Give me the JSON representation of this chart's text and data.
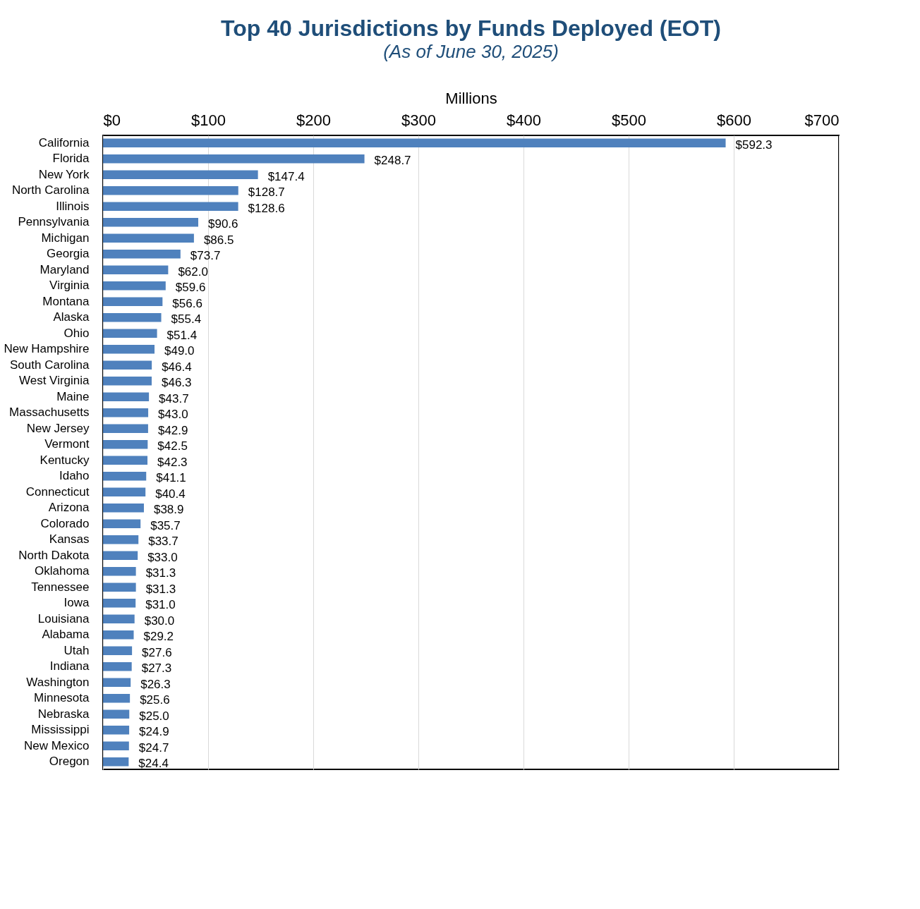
{
  "chart_data": {
    "type": "bar",
    "orientation": "horizontal",
    "title": "Top 40 Jurisdictions by Funds Deployed (EOT)",
    "subtitle": "(As of June 30, 2025)",
    "xlabel": "Millions",
    "categories": [
      "California",
      "Florida",
      "New York",
      "North Carolina",
      "Illinois",
      "Pennsylvania",
      "Michigan",
      "Georgia",
      "Maryland",
      "Virginia",
      "Montana",
      "Alaska",
      "Ohio",
      "New Hampshire",
      "South Carolina",
      "West Virginia",
      "Maine",
      "Massachusetts",
      "New Jersey",
      "Vermont",
      "Kentucky",
      "Idaho",
      "Connecticut",
      "Arizona",
      "Colorado",
      "Kansas",
      "North Dakota",
      "Oklahoma",
      "Tennessee",
      "Iowa",
      "Louisiana",
      "Alabama",
      "Utah",
      "Indiana",
      "Washington",
      "Minnesota",
      "Nebraska",
      "Mississippi",
      "New Mexico",
      "Oregon"
    ],
    "values": [
      592.3,
      248.7,
      147.4,
      128.7,
      128.6,
      90.6,
      86.5,
      73.7,
      62.0,
      59.6,
      56.6,
      55.4,
      51.4,
      49.0,
      46.4,
      46.3,
      43.7,
      43.0,
      42.9,
      42.5,
      42.3,
      41.1,
      40.4,
      38.9,
      35.7,
      33.7,
      33.0,
      31.3,
      31.3,
      31.0,
      30.0,
      29.2,
      27.6,
      27.3,
      26.3,
      25.6,
      25.0,
      24.9,
      24.7,
      24.4
    ],
    "value_labels": [
      "$592.3",
      "$248.7",
      "$147.4",
      "$128.7",
      "$128.6",
      "$90.6",
      "$86.5",
      "$73.7",
      "$62.0",
      "$59.6",
      "$56.6",
      "$55.4",
      "$51.4",
      "$49.0",
      "$46.4",
      "$46.3",
      "$43.7",
      "$43.0",
      "$42.9",
      "$42.5",
      "$42.3",
      "$41.1",
      "$40.4",
      "$38.9",
      "$35.7",
      "$33.7",
      "$33.0",
      "$31.3",
      "$31.3",
      "$31.0",
      "$30.0",
      "$29.2",
      "$27.6",
      "$27.3",
      "$26.3",
      "$25.6",
      "$25.0",
      "$24.9",
      "$24.7",
      "$24.4"
    ],
    "color": "#4f81bd",
    "xlim": [
      0,
      700
    ],
    "xticks": [
      {
        "value": 0,
        "label": "$0"
      },
      {
        "value": 100,
        "label": "$100"
      },
      {
        "value": 200,
        "label": "$200"
      },
      {
        "value": 300,
        "label": "$300"
      },
      {
        "value": 400,
        "label": "$400"
      },
      {
        "value": 500,
        "label": "$500"
      },
      {
        "value": 600,
        "label": "$600"
      },
      {
        "value": 700,
        "label": "$700"
      }
    ],
    "grid": "x"
  }
}
